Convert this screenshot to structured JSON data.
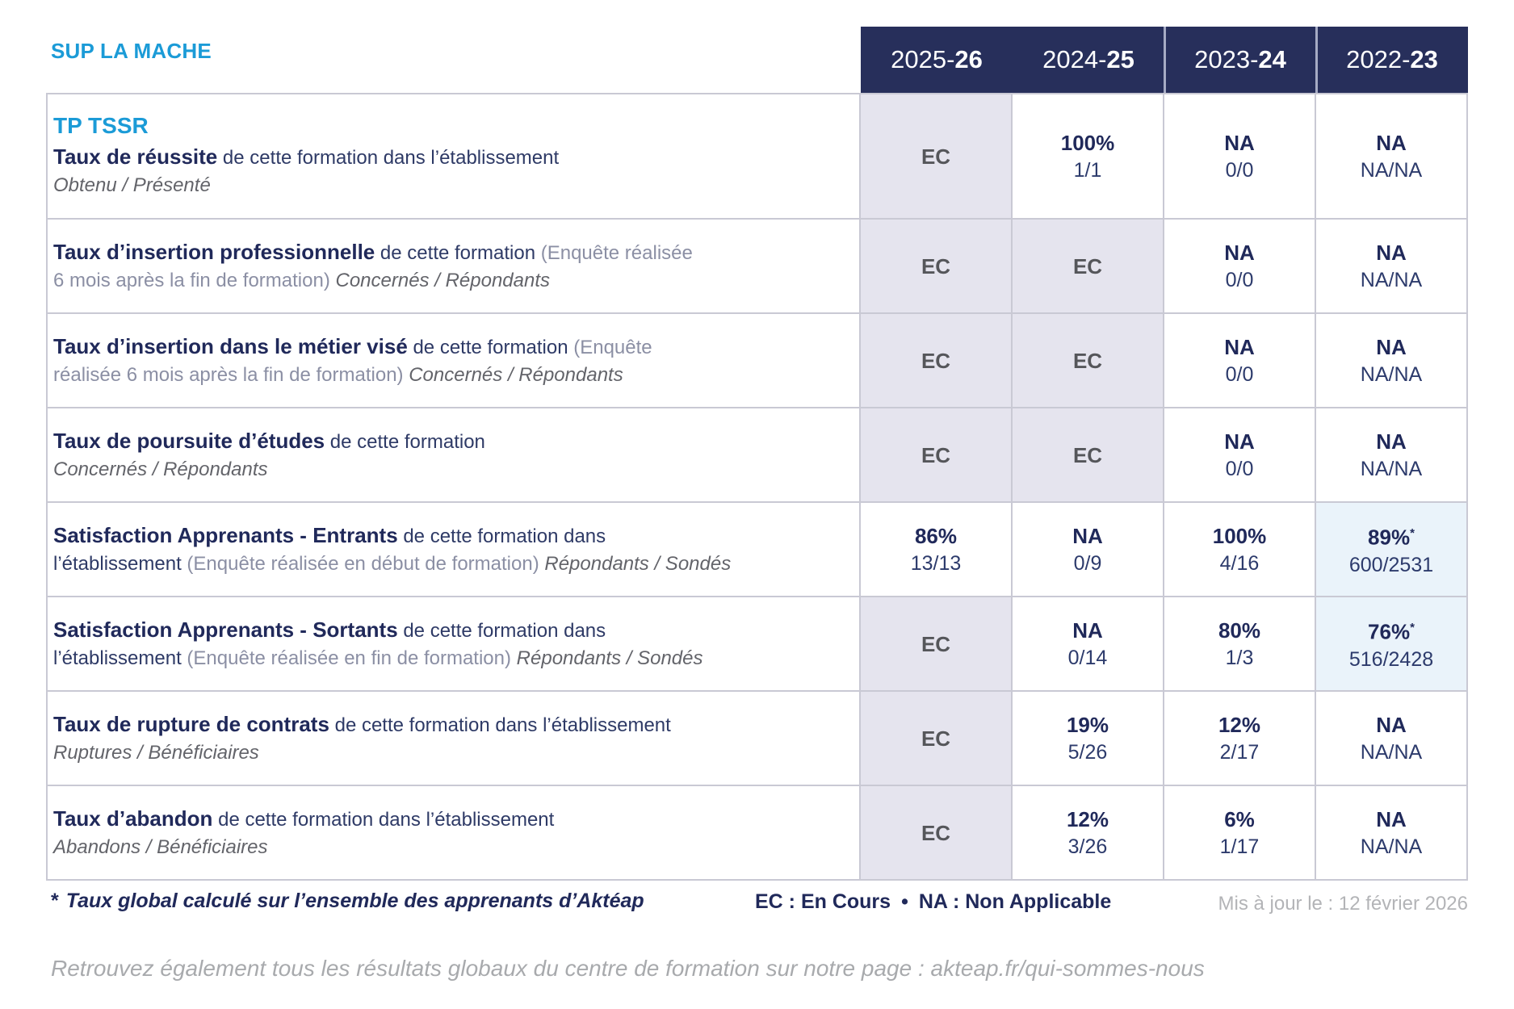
{
  "brand": "SUP LA MACHE",
  "theme": {
    "blue": "#1b9bd7",
    "navy": "#272f5b",
    "navy-text": "#20295a",
    "navy-mid": "#2e3a66",
    "paren": "#8b8fa4",
    "ital": "#63646a",
    "gray-ec": "#55565a",
    "bg-gray": "#e5e4ee",
    "bg-blue": "#eaf3fa",
    "border": "#c9c9d4",
    "fraction": "#2d3b6c",
    "muted": "#b3b4b7",
    "bottom-gray": "#a8aaad",
    "header-sep": "#a6abc4"
  },
  "header": {
    "columns": [
      {
        "key": "2025-26",
        "pre": "2025-",
        "bold": "26"
      },
      {
        "key": "2024-25",
        "pre": "2024-",
        "bold": "25"
      },
      {
        "key": "2023-24",
        "pre": "2023-",
        "bold": "24"
      },
      {
        "key": "2022-23",
        "pre": "2022-",
        "bold": "23"
      }
    ]
  },
  "rows": [
    {
      "name": "taux-de-reussite",
      "program": "TP TSSR",
      "label": [
        [
          {
            "t": "Taux de réussite",
            "s": "bold"
          },
          {
            "t": " de cette formation dans l’établissement",
            "s": "norm"
          }
        ],
        [
          {
            "t": "Obtenu / Présenté",
            "s": "ital"
          }
        ]
      ],
      "cells": [
        {
          "value": "EC",
          "bg": "g"
        },
        {
          "value": "100%",
          "sub": "1/1",
          "bg": "w"
        },
        {
          "value": "NA",
          "sub": "0/0",
          "bg": "w"
        },
        {
          "value": "NA",
          "sub": "NA/NA",
          "bg": "w"
        }
      ]
    },
    {
      "name": "taux-insertion-professionnelle",
      "label": [
        [
          {
            "t": "Taux d’insertion professionnelle",
            "s": "bold"
          },
          {
            "t": " de cette formation ",
            "s": "norm"
          },
          {
            "t": "(Enquête réalisée",
            "s": "paren"
          }
        ],
        [
          {
            "t": "6 mois après la fin de formation)",
            "s": "paren"
          },
          {
            "t": " Concernés / Répondants",
            "s": "ital"
          }
        ]
      ],
      "cells": [
        {
          "value": "EC",
          "bg": "g"
        },
        {
          "value": "EC",
          "bg": "g"
        },
        {
          "value": "NA",
          "sub": "0/0",
          "bg": "w"
        },
        {
          "value": "NA",
          "sub": "NA/NA",
          "bg": "w"
        }
      ]
    },
    {
      "name": "taux-insertion-metier-vise",
      "label": [
        [
          {
            "t": "Taux d’insertion dans le métier visé",
            "s": "bold"
          },
          {
            "t": " de cette formation ",
            "s": "norm"
          },
          {
            "t": "(Enquête",
            "s": "paren"
          }
        ],
        [
          {
            "t": "réalisée 6 mois après la fin de formation)",
            "s": "paren"
          },
          {
            "t": " Concernés / Répondants",
            "s": "ital"
          }
        ]
      ],
      "cells": [
        {
          "value": "EC",
          "bg": "g"
        },
        {
          "value": "EC",
          "bg": "g"
        },
        {
          "value": "NA",
          "sub": "0/0",
          "bg": "w"
        },
        {
          "value": "NA",
          "sub": "NA/NA",
          "bg": "w"
        }
      ]
    },
    {
      "name": "taux-poursuite-etudes",
      "label": [
        [
          {
            "t": "Taux de poursuite d’études",
            "s": "bold"
          },
          {
            "t": " de cette formation",
            "s": "norm"
          }
        ],
        [
          {
            "t": "Concernés / Répondants",
            "s": "ital"
          }
        ]
      ],
      "cells": [
        {
          "value": "EC",
          "bg": "g"
        },
        {
          "value": "EC",
          "bg": "g"
        },
        {
          "value": "NA",
          "sub": "0/0",
          "bg": "w"
        },
        {
          "value": "NA",
          "sub": "NA/NA",
          "bg": "w"
        }
      ]
    },
    {
      "name": "satisfaction-entrants",
      "label": [
        [
          {
            "t": "Satisfaction Apprenants - Entrants",
            "s": "bold"
          },
          {
            "t": " de cette formation dans",
            "s": "norm"
          }
        ],
        [
          {
            "t": "l’établissement ",
            "s": "norm"
          },
          {
            "t": "(Enquête réalisée en début de formation)",
            "s": "paren"
          },
          {
            "t": " Répondants / Sondés",
            "s": "ital"
          }
        ]
      ],
      "cells": [
        {
          "value": "86%",
          "sub": "13/13",
          "bg": "w"
        },
        {
          "value": "NA",
          "sub": "0/9",
          "bg": "w"
        },
        {
          "value": "100%",
          "sub": "4/16",
          "bg": "w"
        },
        {
          "value": "89%",
          "star": "*",
          "sub": "600/2531",
          "bg": "b"
        }
      ]
    },
    {
      "name": "satisfaction-sortants",
      "label": [
        [
          {
            "t": "Satisfaction Apprenants - Sortants",
            "s": "bold"
          },
          {
            "t": " de cette formation dans",
            "s": "norm"
          }
        ],
        [
          {
            "t": "l’établissement ",
            "s": "norm"
          },
          {
            "t": "(Enquête réalisée en fin de formation)",
            "s": "paren"
          },
          {
            "t": " Répondants / Sondés",
            "s": "ital"
          }
        ]
      ],
      "cells": [
        {
          "value": "EC",
          "bg": "g"
        },
        {
          "value": "NA",
          "sub": "0/14",
          "bg": "w"
        },
        {
          "value": "80%",
          "sub": "1/3",
          "bg": "w"
        },
        {
          "value": "76%",
          "star": "*",
          "sub": "516/2428",
          "bg": "b"
        }
      ]
    },
    {
      "name": "taux-rupture-contrats",
      "label": [
        [
          {
            "t": "Taux de rupture de contrats",
            "s": "bold"
          },
          {
            "t": " de cette formation dans l’établissement",
            "s": "norm"
          }
        ],
        [
          {
            "t": "Ruptures / Bénéficiaires",
            "s": "ital"
          }
        ]
      ],
      "cells": [
        {
          "value": "EC",
          "bg": "g"
        },
        {
          "value": "19%",
          "sub": "5/26",
          "bg": "w"
        },
        {
          "value": "12%",
          "sub": "2/17",
          "bg": "w"
        },
        {
          "value": "NA",
          "sub": "NA/NA",
          "bg": "w"
        }
      ]
    },
    {
      "name": "taux-abandon",
      "label": [
        [
          {
            "t": "Taux d’abandon",
            "s": "bold"
          },
          {
            "t": " de cette formation dans l’établissement",
            "s": "norm"
          }
        ],
        [
          {
            "t": "Abandons / Bénéficiaires",
            "s": "ital"
          }
        ]
      ],
      "cells": [
        {
          "value": "EC",
          "bg": "g"
        },
        {
          "value": "12%",
          "sub": "3/26",
          "bg": "w"
        },
        {
          "value": "6%",
          "sub": "1/17",
          "bg": "w"
        },
        {
          "value": "NA",
          "sub": "NA/NA",
          "bg": "w"
        }
      ]
    }
  ],
  "footer": {
    "note_star": "*",
    "note_text": "Taux global calculé sur l’ensemble des apprenants d’Aktéap",
    "legend_ec": "EC : En Cours",
    "legend_sep": "•",
    "legend_na": "NA : Non Applicable",
    "updated": "Mis à jour le : 12 février 2026",
    "bottom_intro": "Retrouvez également tous les résultats globaux du centre de formation sur notre page : ",
    "bottom_url": "akteap.fr/qui-sommes-nous"
  }
}
